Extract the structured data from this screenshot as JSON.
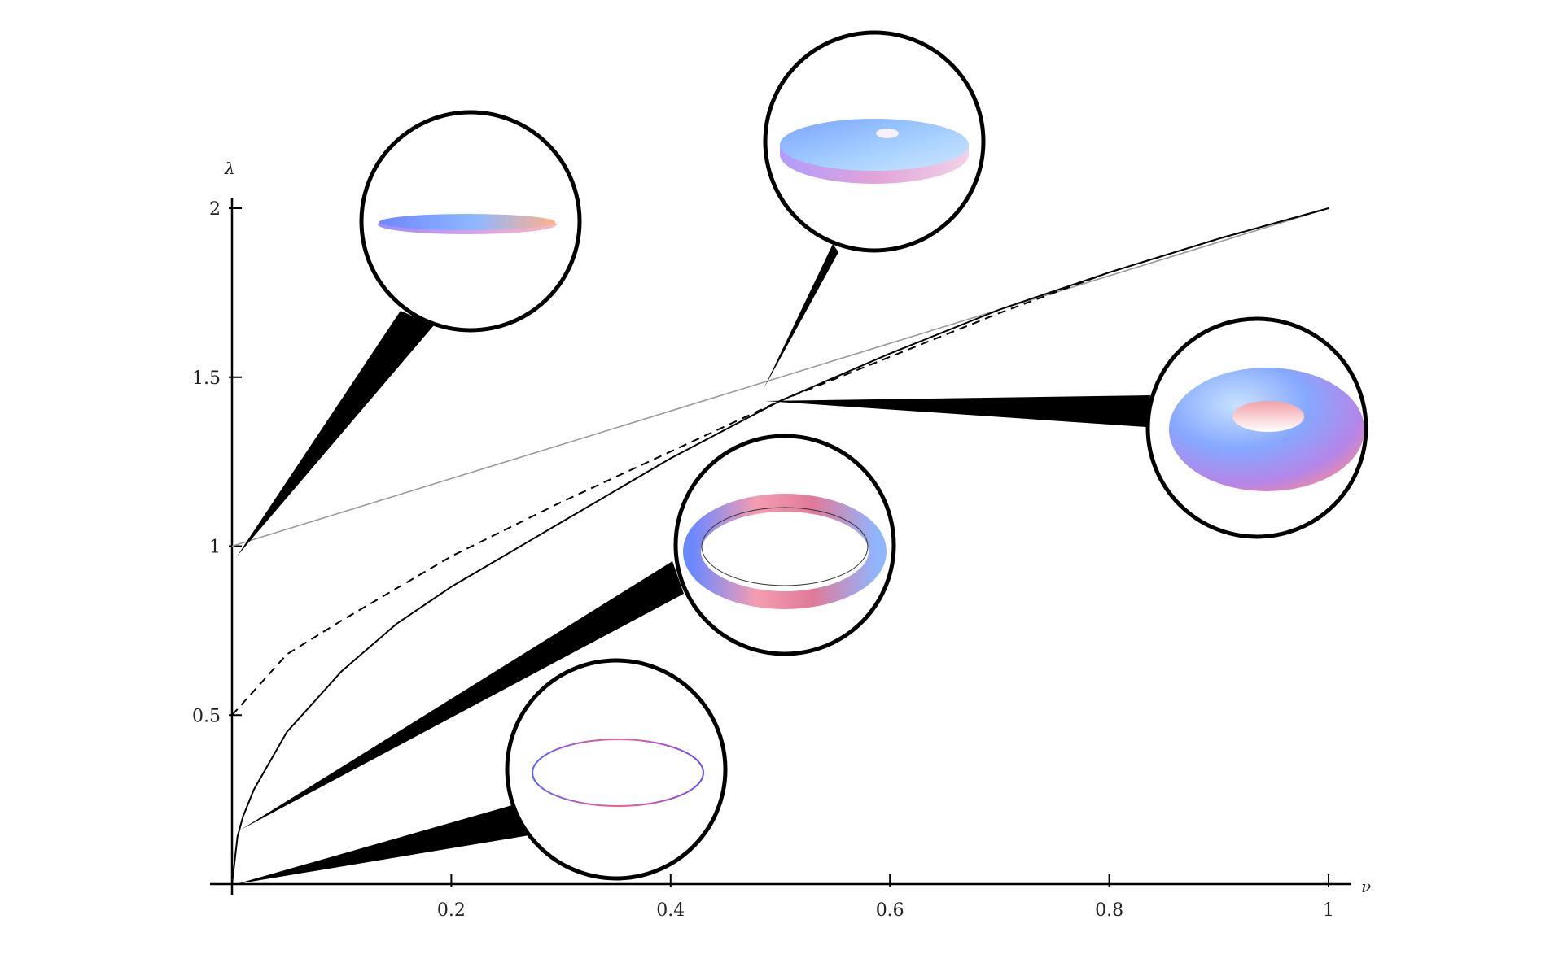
{
  "chart_data": {
    "type": "line",
    "title": "",
    "xlabel": "ν",
    "ylabel": "λ",
    "xlim": [
      0,
      1
    ],
    "ylim": [
      0,
      2
    ],
    "x_ticks": [
      {
        "value": 0.2,
        "label": "0.2"
      },
      {
        "value": 0.4,
        "label": "0.4"
      },
      {
        "value": 0.6,
        "label": "0.6"
      },
      {
        "value": 0.8,
        "label": "0.8"
      },
      {
        "value": 1.0,
        "label": "1"
      }
    ],
    "y_ticks": [
      {
        "value": 0.5,
        "label": "0.5"
      },
      {
        "value": 1.0,
        "label": "1"
      },
      {
        "value": 1.5,
        "label": "1.5"
      },
      {
        "value": 2.0,
        "label": "2"
      }
    ],
    "grid": false,
    "series": [
      {
        "style": "solid-gray",
        "color": "#9a9a9a",
        "x": [
          0,
          0.2,
          0.4,
          0.6,
          0.8,
          1.0
        ],
        "y": [
          1.0,
          1.2,
          1.4,
          1.6,
          1.8,
          2.0
        ]
      },
      {
        "style": "dashed",
        "color": "#000000",
        "x": [
          0,
          0.05,
          0.1,
          0.2,
          0.3,
          0.4,
          0.5,
          0.6,
          0.7,
          0.8,
          0.9,
          1.0
        ],
        "y": [
          0.5,
          0.68,
          0.78,
          0.97,
          1.13,
          1.28,
          1.43,
          1.56,
          1.69,
          1.81,
          1.91,
          2.0
        ]
      },
      {
        "style": "solid-black",
        "color": "#000000",
        "x": [
          0,
          0.005,
          0.01,
          0.02,
          0.05,
          0.1,
          0.15,
          0.2,
          0.3,
          0.4,
          0.5,
          0.6,
          0.7,
          0.8,
          0.9,
          1.0
        ],
        "y": [
          0,
          0.14,
          0.2,
          0.28,
          0.45,
          0.63,
          0.77,
          0.88,
          1.07,
          1.26,
          1.43,
          1.57,
          1.7,
          1.81,
          1.91,
          2.0
        ]
      }
    ],
    "insets": [
      {
        "shape": "flat-disk",
        "anchor": {
          "x": 0.01,
          "y": 1.0
        }
      },
      {
        "shape": "thick-disk",
        "anchor": {
          "x": 0.48,
          "y": 1.48
        }
      },
      {
        "shape": "fat-torus",
        "anchor": {
          "x": 0.49,
          "y": 1.44
        }
      },
      {
        "shape": "thin-ring",
        "anchor": {
          "x": 0.01,
          "y": 0.16
        }
      },
      {
        "shape": "wire-circle",
        "anchor": {
          "x": 0.0,
          "y": 0.0
        }
      }
    ],
    "colors": {
      "surface_blue": "#7a9bff",
      "surface_pink": "#ff9aa8",
      "axis": "#000000"
    }
  }
}
